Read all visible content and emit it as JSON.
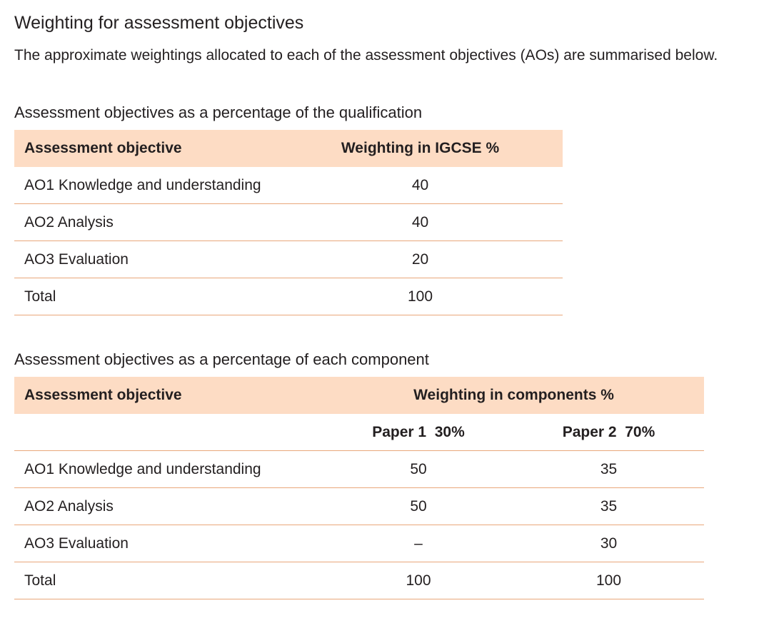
{
  "heading": "Weighting for assessment objectives",
  "intro": "The approximate weightings allocated to each of the assessment objectives (AOs) are summarised below.",
  "qualification_table": {
    "caption": "Assessment objectives as a percentage of the qualification",
    "headers": [
      "Assessment objective",
      "Weighting in IGCSE %"
    ],
    "rows": [
      [
        "AO1 Knowledge and understanding",
        "40"
      ],
      [
        "AO2 Analysis",
        "40"
      ],
      [
        "AO3 Evaluation",
        "20"
      ],
      [
        "Total",
        "100"
      ]
    ]
  },
  "component_table": {
    "caption": "Assessment objectives as a percentage of each component",
    "headers": [
      "Assessment objective",
      "Weighting in components %"
    ],
    "sub_headers": [
      "Paper 1  30%",
      "Paper 2  70%"
    ],
    "rows": [
      [
        "AO1 Knowledge and understanding",
        "50",
        "35"
      ],
      [
        "AO2 Analysis",
        "50",
        "35"
      ],
      [
        "AO3 Evaluation",
        "–",
        "30"
      ],
      [
        "Total",
        "100",
        "100"
      ]
    ]
  }
}
